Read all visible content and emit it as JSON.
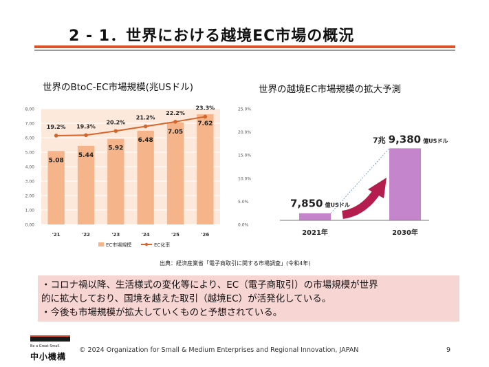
{
  "slide": {
    "title": "2 - 1．世界における越境EC市場の概況",
    "page_number": "9",
    "copyright": "© 2024 Organization for Small & Medium Enterprises and Regional Innovation, JAPAN",
    "source_note": "出典：経済産業省「電子商取引に関する市場調査」(令和4年)",
    "logo_tagline": "Be a Great Small.",
    "logo_name": "中小機構"
  },
  "colors": {
    "accent": "#d9542a",
    "bar_light": "#f5b48a",
    "plot_bg": "#fce9dc",
    "line": "#d5652a",
    "purple": "#c585cc",
    "arrow": "#b61d4f",
    "summary_bg": "#f6d5d3"
  },
  "summary": {
    "lines": [
      "・コロナ禍以降、生活様式の変化等により、EC（電子商取引）の市場規模が世界",
      "的に拡大しており、国境を越えた取引（越境EC）が活発化している。",
      "・今後も市場規模が拡大していくものと予想されている。"
    ]
  },
  "chart_data": [
    {
      "type": "bar",
      "title": "世界のBtoC-EC市場規模(兆USドル)",
      "categories": [
        "'21",
        "'22",
        "'23",
        "'24",
        "'25",
        "'26"
      ],
      "series": [
        {
          "name": "EC市場規模",
          "axis": "left",
          "type": "bar",
          "values": [
            5.08,
            5.44,
            5.92,
            6.48,
            7.05,
            7.62
          ]
        },
        {
          "name": "EC化率",
          "axis": "right",
          "type": "line",
          "values": [
            19.2,
            19.3,
            20.2,
            21.2,
            22.2,
            23.3
          ]
        }
      ],
      "bar_labels": [
        "5.08",
        "5.44",
        "5.92",
        "6.48",
        "7.05",
        "7.62"
      ],
      "line_labels": [
        "19.2%",
        "19.3%",
        "20.2%",
        "21.2%",
        "22.2%",
        "23.3%"
      ],
      "ylim": [
        0,
        8
      ],
      "y2lim": [
        0,
        25
      ],
      "yticks": [
        "0.00",
        "1.00",
        "2.00",
        "3.00",
        "4.00",
        "5.00",
        "6.00",
        "7.00",
        "8.00"
      ],
      "y2ticks": [
        "0.0%",
        "5.0%",
        "10.0%",
        "15.0%",
        "20.0%",
        "25.0%"
      ],
      "legend_position": "bottom",
      "grid": true
    },
    {
      "type": "bar",
      "title": "世界の越境EC市場規模の拡大予測",
      "categories": [
        "2021年",
        "2030年"
      ],
      "values": [
        0.785,
        7.938
      ],
      "value_labels": [
        {
          "number": "7,850",
          "unit": "億USドル"
        },
        {
          "prefix": "7兆",
          "number": "9,380",
          "unit": "億USドル"
        }
      ],
      "ylim": [
        0,
        8.5
      ]
    }
  ]
}
